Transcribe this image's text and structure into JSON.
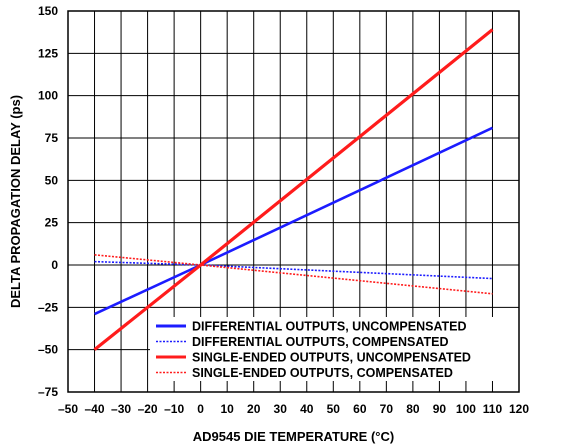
{
  "chart_data": {
    "type": "line",
    "xlabel": "AD9545 DIE TEMPERATURE (°C)",
    "ylabel": "DELTA PROPAGATION DELAY (ps)",
    "xlim": [
      -50,
      120
    ],
    "ylim": [
      -75,
      150
    ],
    "xticks": [
      "–50",
      "–40",
      "–30",
      "–20",
      "–10",
      "0",
      "10",
      "20",
      "30",
      "40",
      "50",
      "60",
      "70",
      "80",
      "90",
      "100",
      "110",
      "120"
    ],
    "yticks": [
      "–75",
      "–50",
      "–25",
      "0",
      "25",
      "50",
      "75",
      "100",
      "125",
      "150"
    ],
    "grid": true,
    "legend_position": "bottom-right",
    "series": [
      {
        "name": "DIFFERENTIAL OUTPUTS, UNCOMPENSATED",
        "color": "#1c1cff",
        "style": "solid",
        "x": [
          -40,
          0,
          110
        ],
        "y": [
          -29,
          0,
          81
        ]
      },
      {
        "name": "DIFFERENTIAL OUTPUTS, COMPENSATED",
        "color": "#1c1cff",
        "style": "dotted",
        "x": [
          -40,
          0,
          110
        ],
        "y": [
          2,
          0,
          -8
        ]
      },
      {
        "name": "SINGLE-ENDED OUTPUTS, UNCOMPENSATED",
        "color": "#ff1c1c",
        "style": "solid",
        "x": [
          -40,
          0,
          110
        ],
        "y": [
          -50,
          0,
          139
        ]
      },
      {
        "name": "SINGLE-ENDED OUTPUTS, COMPENSATED",
        "color": "#ff1c1c",
        "style": "dotted",
        "x": [
          -40,
          0,
          110
        ],
        "y": [
          6,
          0,
          -17
        ]
      }
    ]
  }
}
